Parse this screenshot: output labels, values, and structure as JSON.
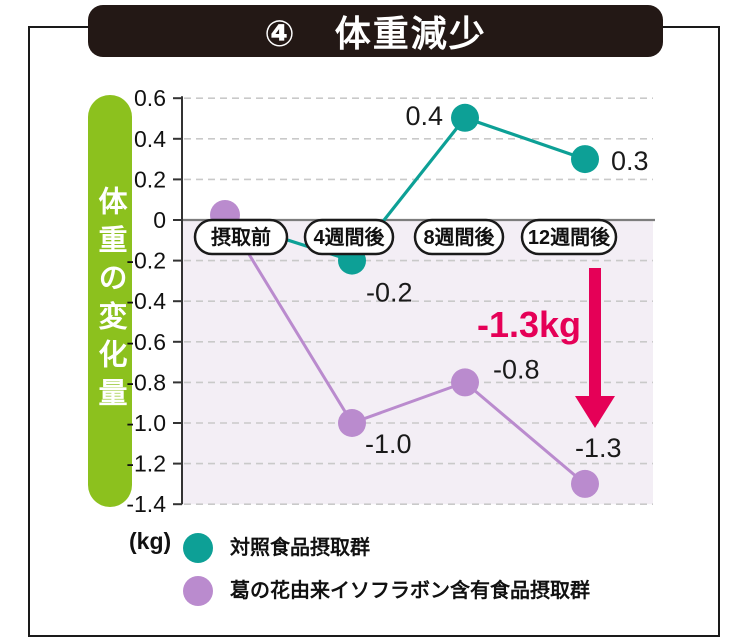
{
  "title": "④　体重減少",
  "y_axis_label": "体重の変化量",
  "unit_label": "(kg)",
  "legend": {
    "items": [
      {
        "label": "対照食品摂取群",
        "color": "#0da096"
      },
      {
        "label": "葛の花由来イソフラボン含有食品摂取群",
        "color": "#ba8bce"
      }
    ]
  },
  "colors": {
    "teal": "#0da096",
    "purple": "#ba8bce",
    "green_pill": "#8cc11e",
    "title_bg": "#231815",
    "accent_pink": "#e50057",
    "negative_shade": "#f3eef5",
    "gridline": "#c9c9c9",
    "zero_line": "#7d7d7d",
    "axis": "#333333"
  },
  "chart_data": {
    "type": "line",
    "title": "④ 体重減少",
    "categories": [
      "摂取前",
      "4週間後",
      "8週間後",
      "12週間後"
    ],
    "series": [
      {
        "name": "対照食品摂取群",
        "color": "#0da096",
        "values": [
          0,
          -0.2,
          0.4,
          0.3
        ],
        "point_labels": [
          "",
          "-0.2",
          "0.4",
          "0.3"
        ]
      },
      {
        "name": "葛の花由来イソフラボン含有食品摂取群",
        "color": "#ba8bce",
        "values": [
          0,
          -1.0,
          -0.8,
          -1.3
        ],
        "point_labels": [
          "",
          "-1.0",
          "-0.8",
          "-1.3"
        ]
      }
    ],
    "ylabel": "体重の変化量",
    "y_unit": "(kg)",
    "ylim": [
      -1.4,
      0.6
    ],
    "ytick_step": 0.2,
    "grid": true,
    "gridline_style": "dashed",
    "legend_position": "bottom-left",
    "negative_region_shaded": true,
    "annotation": {
      "text": "-1.3kg",
      "color": "#e50057",
      "arrow": "down",
      "at_category": "12週間後"
    }
  }
}
